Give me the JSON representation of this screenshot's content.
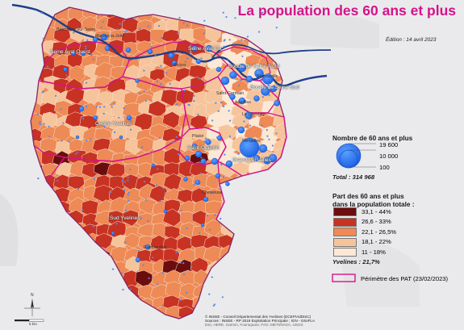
{
  "title": "La population des 60 ans et plus",
  "edition": "Édition : 14 avril 2023",
  "legend_size": {
    "heading": "Nombre de 60 ans et plus",
    "values": [
      "19 600",
      "10 000",
      "100"
    ],
    "total": "Total : 314 968"
  },
  "legend_share": {
    "heading_line1": "Part des 60 ans et plus",
    "heading_line2": "dans la population totale :",
    "classes": [
      {
        "label": "33,1 - 44%",
        "color": "#6b0d0d"
      },
      {
        "label": "26,6 - 33%",
        "color": "#c83222"
      },
      {
        "label": "22,1 - 26,5%",
        "color": "#ed8a55"
      },
      {
        "label": "18,1 - 22%",
        "color": "#f6c49b"
      },
      {
        "label": "11 - 18%",
        "color": "#fce9d5"
      }
    ],
    "average": "Yvelines : 21,7%"
  },
  "legend_pat": {
    "label": "Périmètre des PAT (23/02/2023)",
    "color": "#d4148a"
  },
  "pat_labels": [
    "Seine Aval Ouest",
    "Seine Aval Est",
    "Boucle de Seine Nord",
    "Boucle de Seine Sud",
    "Centre Yvelines",
    "Saint-Quentin",
    "Grand Versailles",
    "Sud Yvelines"
  ],
  "town_labels": [
    "Mantes-la-Jolie",
    "Bonnières-sur-Seine",
    "Poissy",
    "Saint-Germain",
    "Houilles",
    "Sartrouville",
    "Rambouillet",
    "Versailles",
    "Le Chesnay",
    "Plaisir",
    "Chevreuse"
  ],
  "credits": {
    "line1": "© INSEE - Conseil Départemental des Yvelines (DCEP/AdDISC)",
    "line2": "Sources : INSEE - RP 2019 Exploitation Principale ; IGN - GéoFLA",
    "line3": "Esri, HERE, Garmin, Foursquare, FAO, METI/NASA, USGS"
  },
  "north": "N",
  "scale": "5 km"
}
